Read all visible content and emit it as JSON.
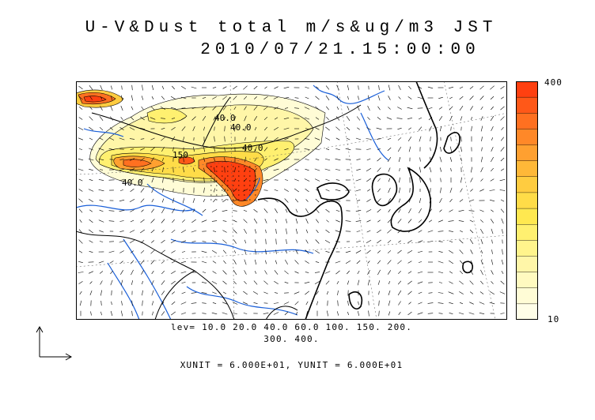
{
  "title_line1": "U-V&Dust total m/s&ug/m3 JST",
  "title_line2": "2010/07/21.15:00:00",
  "colorbar": {
    "max_label": "400",
    "min_label": "10",
    "colors": [
      "#ff4010",
      "#ff5818",
      "#ff7020",
      "#ff8828",
      "#ffa030",
      "#ffb838",
      "#ffcc40",
      "#ffdc48",
      "#ffe850",
      "#fff070",
      "#fff48c",
      "#fff6a8",
      "#fffac0",
      "#fffcd6",
      "#fffee8"
    ]
  },
  "contour_labels": [
    "40.0",
    "40.0",
    "40.0",
    "150",
    "40.0"
  ],
  "levels_line1": "lev= 10.0 20.0 40.0 60.0 100. 150. 200.",
  "levels_line2": "300. 400.",
  "units_text": "XUNIT = 6.000E+01, YUNIT = 6.000E+01",
  "colors": {
    "coast": "#000000",
    "river": "#1a5fd8",
    "vector": "#000000"
  }
}
